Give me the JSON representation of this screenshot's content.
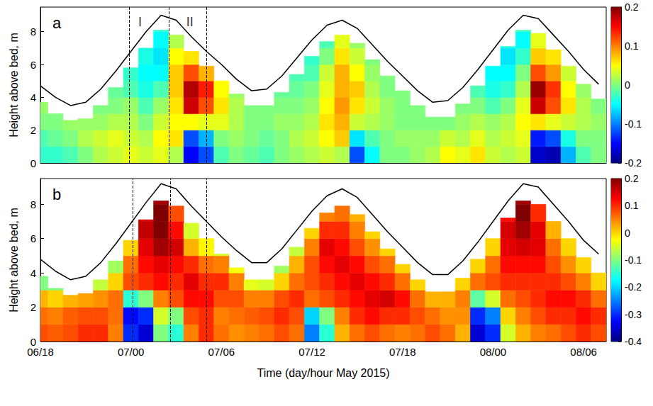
{
  "chart_data": [
    {
      "type": "heatmap",
      "panel": "a",
      "ylabel": "Height above bed, m",
      "grid": false,
      "tick_labels": "y",
      "xlim": [
        18,
        55.5
      ],
      "xticks": [
        {
          "value": 18,
          "label": "06/18"
        },
        {
          "value": 24,
          "label": "07/00"
        },
        {
          "value": 30,
          "label": "07/06"
        },
        {
          "value": 36,
          "label": "07/12"
        },
        {
          "value": 42,
          "label": "07/18"
        },
        {
          "value": 48,
          "label": "08/00"
        },
        {
          "value": 54,
          "label": "08/06"
        }
      ],
      "ylim": [
        0,
        9.5
      ],
      "yticks": [
        0,
        2,
        4,
        6,
        8
      ],
      "x": [
        18,
        19,
        20,
        21,
        22,
        23,
        24,
        25,
        26,
        27,
        28,
        29,
        30,
        31,
        32,
        33,
        34,
        35,
        36,
        37,
        38,
        39,
        40,
        41,
        42,
        43,
        44,
        45,
        46,
        47,
        48,
        49,
        50,
        51,
        52,
        53,
        54,
        55
      ],
      "y": [
        0.5,
        1.5,
        2.5,
        3.5,
        4.5,
        5.5,
        6.5,
        7.5,
        8.5
      ],
      "cells": [
        [
          -0.03,
          -0.02,
          0.0,
          0.01
        ],
        [
          -0.03,
          -0.01,
          0.0
        ],
        [
          -0.02,
          0.0,
          0.01
        ],
        [
          0.0,
          0.02,
          0.01
        ],
        [
          0.02,
          0.03,
          0.01,
          0.0
        ],
        [
          0.03,
          0.04,
          0.02,
          0.0,
          -0.01
        ],
        [
          0.04,
          0.03,
          0.02,
          0.01,
          -0.02,
          -0.03
        ],
        [
          0.03,
          0.02,
          0.0,
          -0.02,
          -0.04,
          -0.05,
          -0.04
        ],
        [
          0.04,
          0.05,
          0.03,
          0.01,
          -0.02,
          -0.05,
          -0.06,
          -0.05,
          -0.03
        ],
        [
          0.02,
          0.06,
          0.05,
          0.06,
          0.07,
          0.07,
          0.05,
          0.02
        ],
        [
          -0.15,
          -0.12,
          0.05,
          0.17,
          0.18,
          0.12,
          0.06
        ],
        [
          -0.12,
          -0.08,
          0.04,
          0.12,
          0.14,
          0.08
        ],
        [
          -0.02,
          0.0,
          0.04,
          0.06,
          0.05
        ],
        [
          0.0,
          0.01,
          0.02,
          0.02,
          0.01
        ],
        [
          -0.01,
          0.0,
          0.0,
          0.0
        ],
        [
          -0.02,
          -0.01,
          0.0,
          0.0
        ],
        [
          0.0,
          0.0,
          0.01,
          0.0,
          -0.01
        ],
        [
          0.01,
          0.02,
          0.01,
          0.0,
          -0.01,
          -0.02
        ],
        [
          0.02,
          0.03,
          0.02,
          0.01,
          0.0,
          -0.02,
          -0.03
        ],
        [
          0.03,
          0.05,
          0.06,
          0.05,
          0.04,
          0.03,
          0.0,
          -0.02
        ],
        [
          0.02,
          0.07,
          0.08,
          0.09,
          0.08,
          0.08,
          0.06,
          0.04
        ],
        [
          -0.12,
          -0.06,
          0.03,
          0.06,
          0.07,
          0.05,
          0.03,
          0.01
        ],
        [
          -0.05,
          -0.02,
          0.02,
          0.03,
          0.02,
          0.01,
          0.0
        ],
        [
          0.0,
          0.0,
          0.01,
          0.01,
          0.0,
          0.0
        ],
        [
          0.0,
          0.01,
          0.0,
          0.0,
          0.0
        ],
        [
          0.01,
          0.01,
          0.0,
          0.0
        ],
        [
          0.02,
          0.01,
          0.0
        ],
        [
          0.05,
          0.03,
          0.0
        ],
        [
          0.04,
          0.02,
          0.01,
          0.0
        ],
        [
          0.06,
          0.04,
          0.02,
          0.0,
          -0.02
        ],
        [
          0.03,
          0.02,
          0.01,
          -0.02,
          -0.04,
          -0.05
        ],
        [
          0.02,
          0.03,
          0.02,
          0.0,
          -0.03,
          -0.05,
          -0.06,
          -0.04
        ],
        [
          0.03,
          0.04,
          0.05,
          0.04,
          0.02,
          0.0,
          -0.03,
          -0.05,
          -0.02
        ],
        [
          -0.17,
          -0.14,
          0.06,
          0.17,
          0.19,
          0.12,
          0.07,
          0.04
        ],
        [
          -0.18,
          -0.12,
          0.04,
          0.12,
          0.13,
          0.09,
          0.06
        ],
        [
          -0.08,
          -0.04,
          0.03,
          0.06,
          0.05,
          0.03
        ],
        [
          -0.02,
          0.0,
          0.02,
          0.02,
          0.01
        ],
        [
          0.0,
          0.0,
          0.01,
          0.0
        ]
      ],
      "data_top": [
        3.7,
        3.0,
        2.6,
        2.7,
        3.5,
        4.6,
        5.8,
        7.0,
        8.1,
        7.8,
        6.8,
        5.9,
        5.0,
        4.2,
        3.5,
        3.5,
        4.3,
        5.4,
        6.5,
        7.4,
        7.8,
        7.3,
        6.3,
        5.3,
        4.4,
        3.5,
        2.8,
        2.8,
        3.6,
        4.7,
        5.9,
        7.1,
        8.1,
        7.9,
        6.9,
        5.9,
        4.8,
        3.9
      ],
      "colorbar": {
        "lim": [
          -0.2,
          0.2
        ],
        "ticks": [
          -0.2,
          -0.1,
          0,
          0.1,
          0.2
        ]
      },
      "water_level": {
        "color": "#000000",
        "values": [
          4.7,
          4.0,
          3.5,
          3.7,
          4.5,
          5.6,
          6.8,
          8.0,
          9.0,
          8.7,
          7.7,
          6.8,
          6.0,
          5.1,
          4.4,
          4.5,
          5.3,
          6.4,
          7.5,
          8.4,
          8.7,
          8.2,
          7.2,
          6.2,
          5.3,
          4.4,
          3.7,
          3.8,
          4.6,
          5.7,
          6.9,
          8.1,
          9.0,
          8.8,
          7.8,
          6.8,
          5.7,
          4.8
        ]
      },
      "vlines": {
        "x": [
          23.9,
          26.5,
          29.0
        ],
        "color": "#000000",
        "line_style": "dashed"
      },
      "annotations": [
        {
          "text": "I",
          "x": 24.6,
          "y": 8.6
        },
        {
          "text": "II",
          "x": 27.9,
          "y": 8.6
        }
      ]
    },
    {
      "type": "heatmap",
      "panel": "b",
      "ylabel": "Height above bed, m",
      "xlabel": "Time (day/hour May 2015)",
      "grid": false,
      "xlim": [
        18,
        55.5
      ],
      "xticks": [
        {
          "value": 18,
          "label": "06/18"
        },
        {
          "value": 24,
          "label": "07/00"
        },
        {
          "value": 30,
          "label": "07/06"
        },
        {
          "value": 36,
          "label": "07/12"
        },
        {
          "value": 42,
          "label": "07/18"
        },
        {
          "value": 48,
          "label": "08/00"
        },
        {
          "value": 54,
          "label": "08/06"
        }
      ],
      "ylim": [
        0,
        9.5
      ],
      "yticks": [
        0,
        2,
        4,
        6,
        8
      ],
      "x": [
        18,
        19,
        20,
        21,
        22,
        23,
        24,
        25,
        26,
        27,
        28,
        29,
        30,
        31,
        32,
        33,
        34,
        35,
        36,
        37,
        38,
        39,
        40,
        41,
        42,
        43,
        44,
        45,
        46,
        47,
        48,
        49,
        50,
        51,
        52,
        53,
        54,
        55
      ],
      "y": [
        0.5,
        1.5,
        2.5,
        3.5,
        4.5,
        5.5,
        6.5,
        7.5,
        8.5
      ],
      "cells": [
        [
          0.08,
          0.06,
          0.02,
          -0.1
        ],
        [
          0.07,
          0.05,
          0.0,
          -0.1
        ],
        [
          0.08,
          0.07,
          0.02
        ],
        [
          0.1,
          0.08,
          0.03
        ],
        [
          0.1,
          0.08,
          0.04,
          -0.06
        ],
        [
          0.05,
          0.06,
          0.06,
          0.0,
          -0.08
        ],
        [
          -0.3,
          -0.32,
          -0.15,
          0.08,
          0.06,
          0.0
        ],
        [
          -0.35,
          -0.3,
          -0.1,
          0.1,
          0.12,
          0.14,
          0.16,
          0.15
        ],
        [
          -0.1,
          -0.05,
          0.05,
          0.12,
          0.14,
          0.18,
          0.2,
          0.2,
          0.18
        ],
        [
          -0.15,
          -0.1,
          0.08,
          0.1,
          0.12,
          0.15,
          0.12,
          0.08
        ],
        [
          0.05,
          0.08,
          0.12,
          0.14,
          0.1,
          0.02,
          -0.05
        ],
        [
          0.1,
          0.1,
          0.12,
          0.1,
          0.06,
          -0.02
        ],
        [
          0.06,
          0.05,
          0.08,
          0.1,
          0.05,
          -0.05
        ],
        [
          0.04,
          0.06,
          0.08,
          0.05,
          -0.03
        ],
        [
          0.05,
          0.07,
          0.05,
          -0.04
        ],
        [
          0.06,
          0.08,
          0.05,
          -0.05
        ],
        [
          0.08,
          0.1,
          0.08,
          0.0,
          -0.08
        ],
        [
          0.06,
          0.08,
          0.1,
          0.06,
          0.02,
          -0.06
        ],
        [
          -0.25,
          -0.2,
          0.06,
          0.08,
          0.08,
          0.05,
          0.0
        ],
        [
          -0.15,
          -0.1,
          0.08,
          0.1,
          0.12,
          0.14,
          0.1,
          0.05
        ],
        [
          0.02,
          0.05,
          0.1,
          0.12,
          0.14,
          0.12,
          0.1,
          0.06
        ],
        [
          0.06,
          0.1,
          0.12,
          0.14,
          0.12,
          0.08,
          0.05,
          0.02
        ],
        [
          0.08,
          0.12,
          0.14,
          0.12,
          0.08,
          0.04,
          0.0
        ],
        [
          0.06,
          0.1,
          0.15,
          0.1,
          0.06,
          0.0
        ],
        [
          0.05,
          0.1,
          0.12,
          0.06,
          0.0
        ],
        [
          0.06,
          0.08,
          0.06,
          0.0
        ],
        [
          0.08,
          0.06,
          0.02
        ],
        [
          0.06,
          0.04,
          0.02
        ],
        [
          0.02,
          0.04,
          0.05,
          0.0
        ],
        [
          -0.35,
          -0.3,
          -0.12,
          0.06,
          0.0
        ],
        [
          -0.3,
          -0.25,
          -0.05,
          0.08,
          0.06,
          0.0
        ],
        [
          -0.05,
          0.0,
          0.06,
          0.1,
          0.12,
          0.14,
          0.15,
          0.12
        ],
        [
          0.02,
          0.05,
          0.08,
          0.1,
          0.12,
          0.15,
          0.18,
          0.2,
          0.18
        ],
        [
          0.05,
          0.08,
          0.1,
          0.1,
          0.12,
          0.14,
          0.14,
          0.1
        ],
        [
          0.06,
          0.1,
          0.12,
          0.1,
          0.08,
          0.06,
          0.02
        ],
        [
          0.08,
          0.1,
          0.12,
          0.08,
          0.04,
          0.0
        ],
        [
          0.1,
          0.12,
          0.1,
          0.05,
          0.0
        ],
        [
          0.08,
          0.1,
          0.06,
          0.0
        ]
      ],
      "data_top": [
        3.8,
        3.1,
        2.7,
        2.8,
        3.6,
        4.7,
        5.9,
        7.1,
        8.2,
        7.9,
        6.9,
        6.0,
        5.1,
        4.3,
        3.6,
        3.6,
        4.4,
        5.5,
        6.6,
        7.5,
        7.9,
        7.4,
        6.4,
        5.4,
        4.5,
        3.6,
        2.9,
        2.9,
        3.7,
        4.8,
        6.0,
        7.2,
        8.2,
        8.0,
        7.0,
        6.0,
        4.9,
        4.0
      ],
      "colorbar": {
        "lim": [
          -0.4,
          0.2
        ],
        "ticks": [
          -0.4,
          -0.3,
          -0.2,
          -0.1,
          0,
          0.1,
          0.2
        ]
      },
      "water_level": {
        "color": "#000000",
        "values": [
          4.8,
          4.1,
          3.6,
          3.8,
          4.6,
          5.7,
          6.9,
          8.1,
          9.2,
          8.9,
          7.9,
          7.0,
          6.1,
          5.3,
          4.6,
          4.6,
          5.4,
          6.5,
          7.6,
          8.5,
          8.9,
          8.4,
          7.4,
          6.4,
          5.5,
          4.6,
          3.9,
          3.9,
          4.7,
          5.8,
          7.0,
          8.2,
          9.2,
          9.0,
          8.0,
          7.0,
          5.9,
          5.1
        ]
      },
      "vlines": {
        "x": [
          24.1,
          26.6,
          29.0
        ],
        "color": "#000000",
        "line_style": "dashed"
      }
    }
  ]
}
